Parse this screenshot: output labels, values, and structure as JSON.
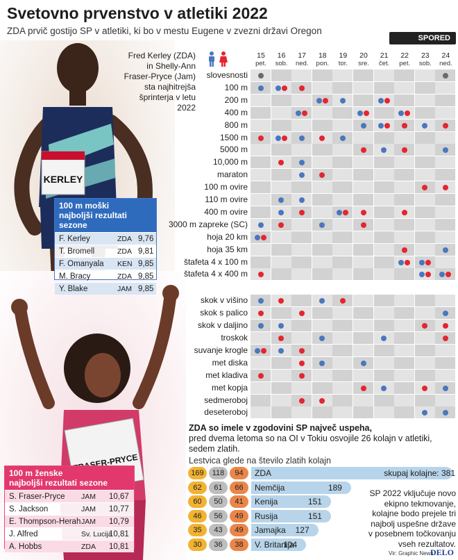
{
  "header": {
    "title": "Svetovno prvenstvo v atletiki 2022",
    "subtitle": "ZDA prvič gostijo SP v atletiki, ki bo v mestu Eugene v zvezni državi Oregon",
    "schedule_label": "SPORED"
  },
  "intro_text": "Fred Kerley (ZDA) in Shelly-Ann Fraser-Pryce (Jam) sta najhitrejša šprinterja v letu 2022",
  "bib": {
    "name": "KERLEY"
  },
  "bib2": {
    "name": "FRASER-PRYCE"
  },
  "days": [
    {
      "num": "15",
      "wd": "pet."
    },
    {
      "num": "16",
      "wd": "sob."
    },
    {
      "num": "17",
      "wd": "ned."
    },
    {
      "num": "18",
      "wd": "pon."
    },
    {
      "num": "19",
      "wd": "tor."
    },
    {
      "num": "20",
      "wd": "sre."
    },
    {
      "num": "21",
      "wd": "čet."
    },
    {
      "num": "22",
      "wd": "pet."
    },
    {
      "num": "23",
      "wd": "sob."
    },
    {
      "num": "24",
      "wd": "ned."
    }
  ],
  "legend_colors": {
    "men": "#4a77be",
    "women": "#e52530",
    "ceremony": "#6b6b6b"
  },
  "schedule": [
    {
      "event": "slovesnosti",
      "marks": [
        [
          "g"
        ],
        [],
        [],
        [],
        [],
        [],
        [],
        [],
        [],
        [
          "g"
        ]
      ]
    },
    {
      "event": "100 m",
      "marks": [
        [
          "m"
        ],
        [
          "m",
          "w"
        ],
        [
          "w"
        ],
        [],
        [],
        [],
        [],
        [],
        [],
        []
      ]
    },
    {
      "event": "200 m",
      "marks": [
        [],
        [],
        [],
        [
          "m",
          "w"
        ],
        [
          "m"
        ],
        [],
        [
          "m",
          "w"
        ],
        [],
        [],
        []
      ]
    },
    {
      "event": "400 m",
      "marks": [
        [],
        [],
        [
          "m",
          "w"
        ],
        [],
        [],
        [
          "m",
          "w"
        ],
        [],
        [
          "m",
          "w"
        ],
        [],
        []
      ]
    },
    {
      "event": "800 m",
      "marks": [
        [],
        [],
        [],
        [],
        [],
        [
          "m"
        ],
        [
          "m",
          "w"
        ],
        [
          "w"
        ],
        [
          "m"
        ],
        [
          "w"
        ]
      ]
    },
    {
      "event": "1500 m",
      "marks": [
        [
          "w"
        ],
        [
          "m",
          "w"
        ],
        [
          "m"
        ],
        [
          "w"
        ],
        [
          "m"
        ],
        [],
        [],
        [],
        [],
        []
      ]
    },
    {
      "event": "5000 m",
      "marks": [
        [],
        [],
        [],
        [],
        [],
        [
          "w"
        ],
        [
          "m"
        ],
        [
          "w"
        ],
        [],
        [
          "m"
        ]
      ]
    },
    {
      "event": "10,000 m",
      "marks": [
        [],
        [
          "w"
        ],
        [
          "m"
        ],
        [],
        [],
        [],
        [],
        [],
        [],
        []
      ]
    },
    {
      "event": "maraton",
      "marks": [
        [],
        [],
        [
          "m"
        ],
        [
          "w"
        ],
        [],
        [],
        [],
        [],
        [],
        []
      ]
    },
    {
      "event": "100 m ovire",
      "marks": [
        [],
        [],
        [],
        [],
        [],
        [],
        [],
        [],
        [
          "w"
        ],
        [
          "w"
        ]
      ]
    },
    {
      "event": "110 m ovire",
      "marks": [
        [],
        [
          "m"
        ],
        [
          "m"
        ],
        [],
        [],
        [],
        [],
        [],
        [],
        []
      ]
    },
    {
      "event": "400 m ovire",
      "marks": [
        [],
        [
          "m"
        ],
        [
          "w"
        ],
        [],
        [
          "m",
          "w"
        ],
        [
          "w"
        ],
        [],
        [
          "w"
        ],
        [],
        []
      ]
    },
    {
      "event": "3000 m zapreke (SC)",
      "marks": [
        [
          "m"
        ],
        [
          "w"
        ],
        [],
        [
          "m"
        ],
        [],
        [
          "w"
        ],
        [],
        [],
        [],
        []
      ]
    },
    {
      "event": "hoja 20 km",
      "marks": [
        [
          "m",
          "w"
        ],
        [],
        [],
        [],
        [],
        [],
        [],
        [],
        [],
        []
      ]
    },
    {
      "event": "hoja 35 km",
      "marks": [
        [],
        [],
        [],
        [],
        [],
        [],
        [],
        [
          "w"
        ],
        [],
        [
          "m"
        ]
      ]
    },
    {
      "event": "štafeta 4 x 100 m",
      "marks": [
        [],
        [],
        [],
        [],
        [],
        [],
        [],
        [
          "m",
          "w"
        ],
        [
          "m",
          "w"
        ],
        []
      ]
    },
    {
      "event": "štafeta 4 x 400 m",
      "marks": [
        [
          "w"
        ],
        [],
        [],
        [],
        [],
        [],
        [],
        [],
        [
          "m",
          "w"
        ],
        [
          "m",
          "w"
        ]
      ]
    },
    {
      "event": "skok v višino",
      "marks": [
        [
          "m"
        ],
        [
          "w"
        ],
        [],
        [
          "m"
        ],
        [
          "w"
        ],
        [],
        [],
        [],
        [],
        []
      ]
    },
    {
      "event": "skok s palico",
      "marks": [
        [
          "w"
        ],
        [],
        [
          "w"
        ],
        [],
        [],
        [],
        [],
        [],
        [],
        [
          "m"
        ]
      ]
    },
    {
      "event": "skok v daljino",
      "marks": [
        [
          "m"
        ],
        [
          "m"
        ],
        [],
        [],
        [],
        [],
        [],
        [],
        [
          "w"
        ],
        [
          "w"
        ]
      ]
    },
    {
      "event": "troskok",
      "marks": [
        [],
        [
          "w"
        ],
        [],
        [
          "m"
        ],
        [],
        [],
        [
          "m"
        ],
        [],
        [],
        [
          "w"
        ]
      ]
    },
    {
      "event": "suvanje krogle",
      "marks": [
        [
          "m",
          "w"
        ],
        [
          "m"
        ],
        [
          "w"
        ],
        [],
        [],
        [],
        [],
        [],
        [],
        []
      ]
    },
    {
      "event": "met diska",
      "marks": [
        [],
        [],
        [
          "w"
        ],
        [
          "m"
        ],
        [],
        [
          "m"
        ],
        [],
        [],
        [],
        []
      ]
    },
    {
      "event": "met kladiva",
      "marks": [
        [
          "w"
        ],
        [],
        [
          "w"
        ],
        [],
        [],
        [],
        [],
        [],
        [],
        []
      ]
    },
    {
      "event": "met kopja",
      "marks": [
        [],
        [],
        [],
        [],
        [],
        [
          "w"
        ],
        [
          "m"
        ],
        [],
        [
          "w"
        ],
        [
          "m"
        ]
      ]
    },
    {
      "event": "sedmeroboj",
      "marks": [
        [],
        [],
        [
          "w"
        ],
        [
          "w"
        ],
        [],
        [],
        [],
        [],
        [],
        []
      ]
    },
    {
      "event": "deseteroboj",
      "marks": [
        [],
        [],
        [],
        [],
        [],
        [],
        [],
        [],
        [
          "m"
        ],
        [
          "m"
        ]
      ]
    }
  ],
  "men_ranking": {
    "title_line1": "100 m moški",
    "title_line2": "najboljši rezultati sezone",
    "rows": [
      {
        "name": "F. Kerley",
        "country": "ZDA",
        "time": "9,76"
      },
      {
        "name": "T. Bromell",
        "country": "ZDA",
        "time": "9,81"
      },
      {
        "name": "F. Omanyala",
        "country": "KEN",
        "time": "9,85"
      },
      {
        "name": "M. Bracy",
        "country": "ZDA",
        "time": "9,85"
      },
      {
        "name": "Y. Blake",
        "country": "JAM",
        "time": "9,85"
      }
    ]
  },
  "women_ranking": {
    "title_line1": "100 m ženske",
    "title_line2": "najboljši rezultati sezone",
    "rows": [
      {
        "name": "S. Fraser-Pryce",
        "country": "JAM",
        "time": "10,67"
      },
      {
        "name": "S. Jackson",
        "country": "JAM",
        "time": "10,77"
      },
      {
        "name": "E. Thompson-Herah",
        "country": "JAM",
        "time": "10,79"
      },
      {
        "name": "J. Alfred",
        "country": "Sv. Lucija",
        "time": "10,81"
      },
      {
        "name": "A. Hobbs",
        "country": "ZDA",
        "time": "10,81"
      }
    ]
  },
  "medals": {
    "heading_bold": "ZDA so imele v zgodovini SP največ uspeha,",
    "heading_rest": "pred dvema letoma so na OI v Tokiu osvojile 26 kolajn v atletiki, sedem zlatih.",
    "scale_label": "Lestvica glede na število zlatih kolajn",
    "total_label": "skupaj kolajne:",
    "rows": [
      {
        "gold": "169",
        "silver": "118",
        "bronze": "94",
        "country": "ZDA",
        "total": 381
      },
      {
        "gold": "62",
        "silver": "61",
        "bronze": "66",
        "country": "Nemčija",
        "total": 189
      },
      {
        "gold": "60",
        "silver": "50",
        "bronze": "41",
        "country": "Kenija",
        "total": 151
      },
      {
        "gold": "46",
        "silver": "56",
        "bronze": "49",
        "country": "Rusija",
        "total": 151
      },
      {
        "gold": "35",
        "silver": "43",
        "bronze": "49",
        "country": "Jamajka",
        "total": 127
      },
      {
        "gold": "30",
        "silver": "36",
        "bronze": "38",
        "country": "V. Britanija",
        "total": 104
      }
    ]
  },
  "note": "SP 2022 vključuje novo ekipno tekmovanje, kolajne bodo prejele tri najbolj uspešne države v posebnem točkovanju vseh rezultatov.",
  "credit": "Vir: Graphic News",
  "brand": "DELO"
}
